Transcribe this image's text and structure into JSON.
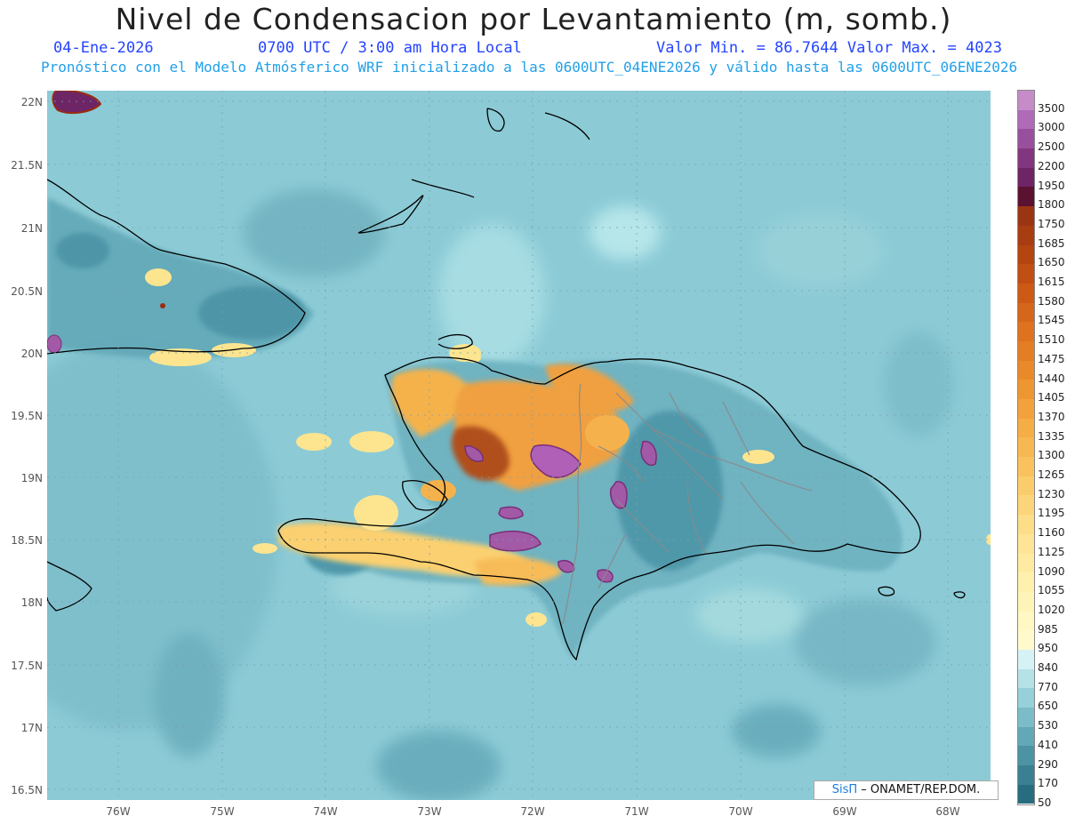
{
  "header": {
    "title": "Nivel de Condensacion por Levantamiento (m, somb.)",
    "date": "04-Ene-2026",
    "time": "0700 UTC / 3:00 am Hora Local",
    "minmax": "Valor Min. = 86.7644  Valor Max. = 4023",
    "forecast": "Pronóstico con el Modelo Atmósferico WRF inicializado a las 0600UTC_04ENE2026 y válido hasta las  0600UTC_06ENE2026"
  },
  "axes": {
    "lat_labels": [
      "22N",
      "21.5N",
      "21N",
      "20.5N",
      "20N",
      "19.5N",
      "19N",
      "18.5N",
      "18N",
      "17.5N",
      "17N",
      "16.5N"
    ],
    "lon_labels": [
      "76W",
      "75W",
      "74W",
      "73W",
      "72W",
      "71W",
      "70W",
      "69W",
      "68W"
    ]
  },
  "colorbar": {
    "labels": [
      "3500",
      "3000",
      "2500",
      "2200",
      "1950",
      "1800",
      "1750",
      "1685",
      "1650",
      "1615",
      "1580",
      "1545",
      "1510",
      "1475",
      "1440",
      "1405",
      "1370",
      "1335",
      "1300",
      "1265",
      "1230",
      "1195",
      "1160",
      "1125",
      "1090",
      "1055",
      "1020",
      "985",
      "950",
      "840",
      "770",
      "650",
      "530",
      "410",
      "290",
      "170",
      "50"
    ],
    "colors": [
      "#c58cc8",
      "#b06bb6",
      "#98509e",
      "#82367f",
      "#6d2566",
      "#5a1230",
      "#9a3514",
      "#a83d12",
      "#b44510",
      "#c14e12",
      "#cc5a16",
      "#d5661a",
      "#de721e",
      "#e47e24",
      "#e98a2a",
      "#ee9632",
      "#f2a23c",
      "#f5ad46",
      "#f7b852",
      "#f9c25e",
      "#fbcc6c",
      "#fcd57a",
      "#fddd88",
      "#fee496",
      "#ffeaa2",
      "#fff0ae",
      "#fff4b8",
      "#fff8c2",
      "#fffacc",
      "#d6f2f4",
      "#b4e2e6",
      "#96d0d8",
      "#7cbcc8",
      "#62a8b6",
      "#4c94a4",
      "#3a8092",
      "#286c80"
    ]
  },
  "credit": {
    "brand": "SisΠ",
    "text": " – ONAMET/REP.DOM."
  }
}
